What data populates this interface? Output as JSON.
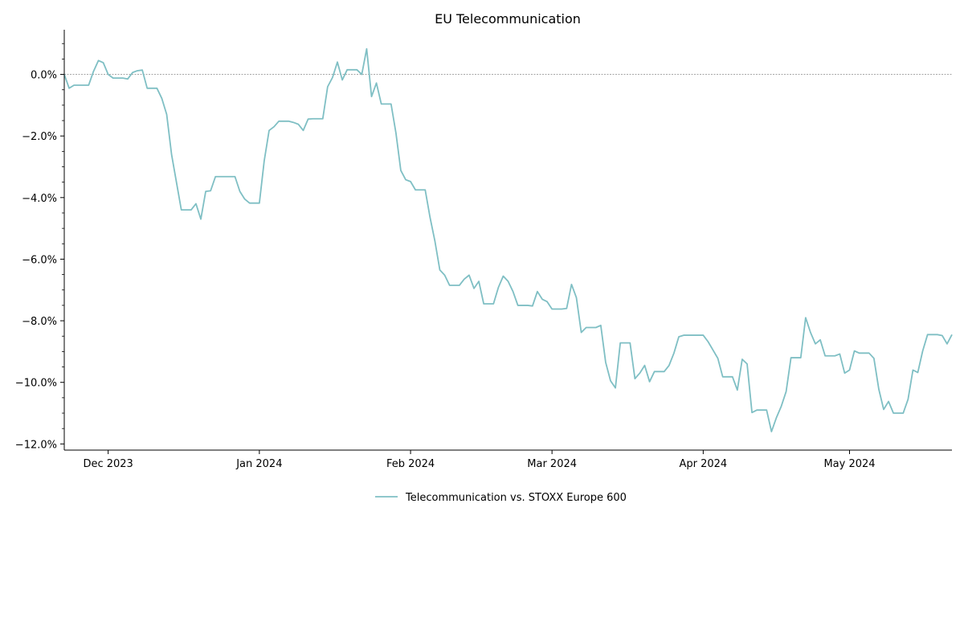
{
  "chart_data": {
    "type": "line",
    "title": "EU Telecommunication",
    "xlabel": "",
    "ylabel": "",
    "x_tick_labels": [
      {
        "date": "2023-12-01",
        "label": "Dec 2023"
      },
      {
        "date": "2024-01-01",
        "label": "Jan 2024"
      },
      {
        "date": "2024-02-01",
        "label": "Feb 2024"
      },
      {
        "date": "2024-03-01",
        "label": "Mar 2024"
      },
      {
        "date": "2024-04-01",
        "label": "Apr 2024"
      },
      {
        "date": "2024-05-01",
        "label": "May 2024"
      }
    ],
    "y_tick_labels": [
      {
        "value": 0,
        "label": "0.0%"
      },
      {
        "value": -2,
        "label": "−2.0%"
      },
      {
        "value": -4,
        "label": "−4.0%"
      },
      {
        "value": -6,
        "label": "−6.0%"
      },
      {
        "value": -8,
        "label": "−8.0%"
      },
      {
        "value": -10,
        "label": "−10.0%"
      },
      {
        "value": -12,
        "label": "−12.0%"
      }
    ],
    "xlim": [
      "2023-11-22",
      "2024-05-22"
    ],
    "ylim": [
      -12.2,
      1.45
    ],
    "y_unit": "%",
    "zero_line": true,
    "grid": false,
    "legend_position": "bottom-center",
    "series": [
      {
        "name": "Telecommunication vs. STOXX Europe 600",
        "color": "#7fbfc4",
        "points": [
          [
            "2023-11-22",
            0.0
          ],
          [
            "2023-11-23",
            -0.45
          ],
          [
            "2023-11-24",
            -0.35
          ],
          [
            "2023-11-27",
            -0.35
          ],
          [
            "2023-11-28",
            0.1
          ],
          [
            "2023-11-29",
            0.45
          ],
          [
            "2023-11-30",
            0.38
          ],
          [
            "2023-12-01",
            0.0
          ],
          [
            "2023-12-02",
            -0.12
          ],
          [
            "2023-12-04",
            -0.12
          ],
          [
            "2023-12-05",
            -0.15
          ],
          [
            "2023-12-06",
            0.06
          ],
          [
            "2023-12-07",
            0.12
          ],
          [
            "2023-12-08",
            0.14
          ],
          [
            "2023-12-09",
            -0.45
          ],
          [
            "2023-12-11",
            -0.45
          ],
          [
            "2023-12-12",
            -0.78
          ],
          [
            "2023-12-13",
            -1.3
          ],
          [
            "2023-12-14",
            -2.6
          ],
          [
            "2023-12-15",
            -3.5
          ],
          [
            "2023-12-16",
            -4.4
          ],
          [
            "2023-12-18",
            -4.4
          ],
          [
            "2023-12-19",
            -4.2
          ],
          [
            "2023-12-20",
            -4.7
          ],
          [
            "2023-12-21",
            -3.8
          ],
          [
            "2023-12-22",
            -3.78
          ],
          [
            "2023-12-23",
            -3.32
          ],
          [
            "2023-12-27",
            -3.32
          ],
          [
            "2023-12-28",
            -3.8
          ],
          [
            "2023-12-29",
            -4.05
          ],
          [
            "2023-12-30",
            -4.18
          ],
          [
            "2024-01-01",
            -4.18
          ],
          [
            "2024-01-02",
            -2.8
          ],
          [
            "2024-01-03",
            -1.82
          ],
          [
            "2024-01-04",
            -1.7
          ],
          [
            "2024-01-05",
            -1.52
          ],
          [
            "2024-01-07",
            -1.52
          ],
          [
            "2024-01-08",
            -1.56
          ],
          [
            "2024-01-09",
            -1.62
          ],
          [
            "2024-01-10",
            -1.82
          ],
          [
            "2024-01-11",
            -1.45
          ],
          [
            "2024-01-12",
            -1.44
          ],
          [
            "2024-01-14",
            -1.44
          ],
          [
            "2024-01-15",
            -0.4
          ],
          [
            "2024-01-16",
            -0.1
          ],
          [
            "2024-01-17",
            0.4
          ],
          [
            "2024-01-18",
            -0.18
          ],
          [
            "2024-01-19",
            0.15
          ],
          [
            "2024-01-21",
            0.15
          ],
          [
            "2024-01-22",
            0.0
          ],
          [
            "2024-01-23",
            0.83
          ],
          [
            "2024-01-24",
            -0.72
          ],
          [
            "2024-01-25",
            -0.28
          ],
          [
            "2024-01-26",
            -0.96
          ],
          [
            "2024-01-28",
            -0.96
          ],
          [
            "2024-01-29",
            -1.9
          ],
          [
            "2024-01-30",
            -3.12
          ],
          [
            "2024-01-31",
            -3.42
          ],
          [
            "2024-02-01",
            -3.48
          ],
          [
            "2024-02-02",
            -3.75
          ],
          [
            "2024-02-04",
            -3.75
          ],
          [
            "2024-02-05",
            -4.65
          ],
          [
            "2024-02-06",
            -5.42
          ],
          [
            "2024-02-07",
            -6.35
          ],
          [
            "2024-02-08",
            -6.52
          ],
          [
            "2024-02-09",
            -6.85
          ],
          [
            "2024-02-11",
            -6.85
          ],
          [
            "2024-02-12",
            -6.65
          ],
          [
            "2024-02-13",
            -6.52
          ],
          [
            "2024-02-14",
            -6.95
          ],
          [
            "2024-02-15",
            -6.72
          ],
          [
            "2024-02-16",
            -7.45
          ],
          [
            "2024-02-18",
            -7.45
          ],
          [
            "2024-02-19",
            -6.92
          ],
          [
            "2024-02-20",
            -6.55
          ],
          [
            "2024-02-21",
            -6.72
          ],
          [
            "2024-02-22",
            -7.05
          ],
          [
            "2024-02-23",
            -7.5
          ],
          [
            "2024-02-25",
            -7.5
          ],
          [
            "2024-02-26",
            -7.52
          ],
          [
            "2024-02-27",
            -7.05
          ],
          [
            "2024-02-28",
            -7.3
          ],
          [
            "2024-02-29",
            -7.38
          ],
          [
            "2024-03-01",
            -7.62
          ],
          [
            "2024-03-03",
            -7.62
          ],
          [
            "2024-03-04",
            -7.6
          ],
          [
            "2024-03-05",
            -6.82
          ],
          [
            "2024-03-06",
            -7.25
          ],
          [
            "2024-03-07",
            -8.38
          ],
          [
            "2024-03-08",
            -8.22
          ],
          [
            "2024-03-10",
            -8.22
          ],
          [
            "2024-03-11",
            -8.15
          ],
          [
            "2024-03-12",
            -9.35
          ],
          [
            "2024-03-13",
            -9.95
          ],
          [
            "2024-03-14",
            -10.18
          ],
          [
            "2024-03-15",
            -8.72
          ],
          [
            "2024-03-17",
            -8.72
          ],
          [
            "2024-03-18",
            -9.88
          ],
          [
            "2024-03-19",
            -9.7
          ],
          [
            "2024-03-20",
            -9.45
          ],
          [
            "2024-03-21",
            -9.98
          ],
          [
            "2024-03-22",
            -9.65
          ],
          [
            "2024-03-24",
            -9.65
          ],
          [
            "2024-03-25",
            -9.45
          ],
          [
            "2024-03-26",
            -9.05
          ],
          [
            "2024-03-27",
            -8.52
          ],
          [
            "2024-03-28",
            -8.47
          ],
          [
            "2024-04-01",
            -8.47
          ],
          [
            "2024-04-02",
            -8.68
          ],
          [
            "2024-04-03",
            -8.95
          ],
          [
            "2024-04-04",
            -9.22
          ],
          [
            "2024-04-05",
            -9.82
          ],
          [
            "2024-04-07",
            -9.82
          ],
          [
            "2024-04-08",
            -10.25
          ],
          [
            "2024-04-09",
            -9.25
          ],
          [
            "2024-04-10",
            -9.4
          ],
          [
            "2024-04-11",
            -10.98
          ],
          [
            "2024-04-12",
            -10.9
          ],
          [
            "2024-04-14",
            -10.9
          ],
          [
            "2024-04-15",
            -11.6
          ],
          [
            "2024-04-16",
            -11.15
          ],
          [
            "2024-04-17",
            -10.78
          ],
          [
            "2024-04-18",
            -10.3
          ],
          [
            "2024-04-19",
            -9.2
          ],
          [
            "2024-04-21",
            -9.2
          ],
          [
            "2024-04-22",
            -7.9
          ],
          [
            "2024-04-23",
            -8.38
          ],
          [
            "2024-04-24",
            -8.75
          ],
          [
            "2024-04-25",
            -8.62
          ],
          [
            "2024-04-26",
            -9.14
          ],
          [
            "2024-04-28",
            -9.14
          ],
          [
            "2024-04-29",
            -9.08
          ],
          [
            "2024-04-30",
            -9.7
          ],
          [
            "2024-05-01",
            -9.6
          ],
          [
            "2024-05-02",
            -8.98
          ],
          [
            "2024-05-03",
            -9.05
          ],
          [
            "2024-05-05",
            -9.05
          ],
          [
            "2024-05-06",
            -9.22
          ],
          [
            "2024-05-07",
            -10.22
          ],
          [
            "2024-05-08",
            -10.88
          ],
          [
            "2024-05-09",
            -10.62
          ],
          [
            "2024-05-10",
            -11.0
          ],
          [
            "2024-05-12",
            -11.0
          ],
          [
            "2024-05-13",
            -10.55
          ],
          [
            "2024-05-14",
            -9.6
          ],
          [
            "2024-05-15",
            -9.68
          ],
          [
            "2024-05-16",
            -8.98
          ],
          [
            "2024-05-17",
            -8.45
          ],
          [
            "2024-05-19",
            -8.45
          ],
          [
            "2024-05-20",
            -8.48
          ],
          [
            "2024-05-21",
            -8.75
          ],
          [
            "2024-05-22",
            -8.45
          ]
        ]
      }
    ]
  }
}
